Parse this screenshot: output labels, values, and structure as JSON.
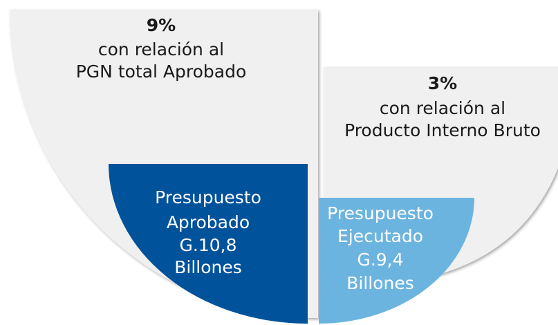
{
  "approved": {
    "percent": "9%",
    "description": [
      "con relación al",
      "PGN total Aprobado"
    ],
    "budget": [
      "Presupuesto",
      "Aprobado",
      "G.10,8",
      "Billones"
    ]
  },
  "executed": {
    "percent": "3%",
    "description": [
      "con relación al",
      "Producto Interno Bruto"
    ],
    "budget": [
      "Presupuesto",
      "Ejecutado",
      "G.9,4",
      "Billones"
    ]
  }
}
